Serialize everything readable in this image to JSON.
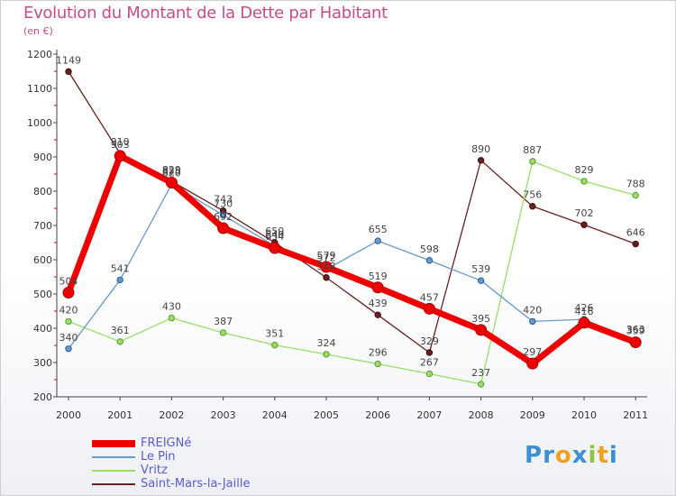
{
  "title": "Evolution du Montant de la Dette par Habitant",
  "subtitle": "(en €)",
  "logo": {
    "text": "Proxiti",
    "letters": [
      {
        "ch": "P",
        "color": "#3a8fd6"
      },
      {
        "ch": "r",
        "color": "#3a8fd6"
      },
      {
        "ch": "o",
        "color": "#f0a020"
      },
      {
        "ch": "x",
        "color": "#3a8fd6"
      },
      {
        "ch": "i",
        "color": "#8cc63f"
      },
      {
        "ch": "t",
        "color": "#f0a020"
      },
      {
        "ch": "i",
        "color": "#3a8fd6"
      }
    ]
  },
  "chart_data": {
    "type": "line",
    "title": "Evolution du Montant de la Dette par Habitant",
    "subtitle": "(en €)",
    "categories": [
      "2000",
      "2001",
      "2002",
      "2003",
      "2004",
      "2005",
      "2006",
      "2007",
      "2008",
      "2009",
      "2010",
      "2011"
    ],
    "ylim": [
      200,
      1200
    ],
    "yticks": [
      200,
      300,
      400,
      500,
      600,
      700,
      800,
      900,
      1000,
      1100,
      1200
    ],
    "grid": false,
    "legend": "bottom-left",
    "series": [
      {
        "name": "Saint-Mars-la-Jaille",
        "color": "#6b1e1e",
        "values": [
          1149,
          910,
          829,
          743,
          650,
          548,
          439,
          329,
          890,
          756,
          702,
          646
        ]
      },
      {
        "name": "Vritz",
        "color": "#99dd66",
        "values": [
          420,
          361,
          430,
          387,
          351,
          324,
          296,
          267,
          237,
          887,
          829,
          788
        ]
      },
      {
        "name": "Le Pin",
        "color": "#6699cc",
        "values": [
          340,
          541,
          820,
          730,
          640,
          572,
          655,
          598,
          539,
          420,
          426,
          363
        ]
      },
      {
        "name": "FREIGNé",
        "color": "#ee0000",
        "values": [
          504,
          903,
          825,
          692,
          634,
          579,
          519,
          457,
          395,
          297,
          416,
          359
        ]
      }
    ]
  }
}
